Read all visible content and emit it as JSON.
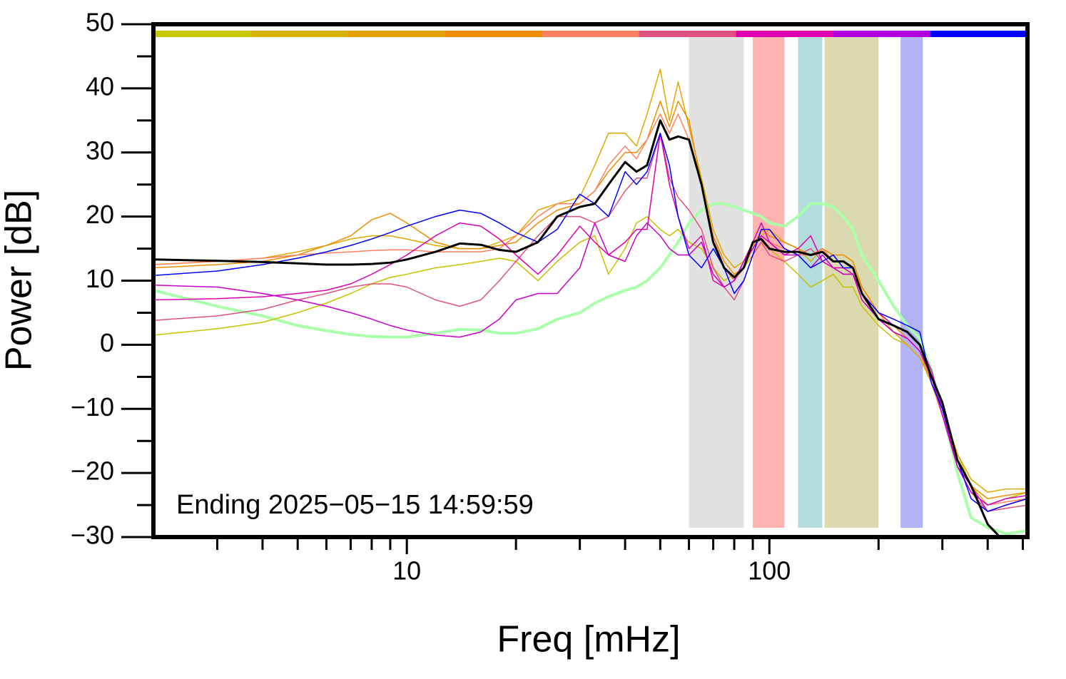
{
  "chart_data": {
    "type": "line",
    "xlabel": "Freq [mHz]",
    "ylabel": "Power [dB]",
    "annotation": "Ending 2025−05−15 14:59:59",
    "xscale": "log",
    "xlim": [
      2,
      515
    ],
    "xticks": [
      10,
      100
    ],
    "xminor_ticks": [
      3,
      4,
      5,
      6,
      7,
      8,
      9,
      20,
      30,
      40,
      50,
      60,
      70,
      80,
      90,
      200,
      300,
      400,
      500
    ],
    "ylim": [
      -30,
      50
    ],
    "yticks": [
      {
        "value": -30,
        "label": "−30"
      },
      {
        "value": -20,
        "label": "−20"
      },
      {
        "value": -10,
        "label": "−10"
      },
      0,
      10,
      20,
      30,
      40,
      50
    ],
    "yminor_ticks": [
      -25,
      -15,
      -5,
      5,
      15,
      25,
      35,
      45
    ],
    "colorbar": [
      "#c8c800",
      "#d9b300",
      "#e6a000",
      "#f08c00",
      "#ff8060",
      "#e05080",
      "#e000b0",
      "#b000e0",
      "#0000ff"
    ],
    "bands": [
      {
        "x": [
          60,
          85
        ],
        "color": "#e2e2e2"
      },
      {
        "x": [
          90,
          110
        ],
        "color": "#ffb3b0"
      },
      {
        "x": [
          120,
          140
        ],
        "color": "#b3dcdc"
      },
      {
        "x": [
          142,
          200
        ],
        "color": "#dbd9b0"
      },
      {
        "x": [
          230,
          265
        ],
        "color": "#b3b3f7"
      }
    ],
    "x": [
      2,
      3,
      4,
      5,
      6,
      7,
      8,
      9,
      10,
      12,
      14,
      16,
      18,
      20,
      23,
      26,
      30,
      33,
      36,
      40,
      43,
      46,
      50,
      53,
      56,
      60,
      65,
      70,
      75,
      80,
      85,
      90,
      95,
      100,
      110,
      120,
      130,
      140,
      150,
      160,
      170,
      180,
      200,
      220,
      240,
      260,
      280,
      300,
      330,
      360,
      400,
      450,
      515
    ],
    "series": [
      {
        "color": "#aaffaa",
        "width": 4,
        "values": [
          8.5,
          6,
          4.5,
          3,
          2.2,
          1.6,
          1.3,
          1.2,
          1.2,
          1.8,
          2.4,
          2.3,
          1.8,
          1.8,
          2.5,
          4,
          5,
          6.5,
          7.5,
          8.5,
          9,
          10,
          12,
          14,
          16,
          19,
          21,
          22,
          22,
          21.5,
          21,
          20.5,
          20,
          19,
          18.5,
          20,
          22,
          22,
          21.5,
          20,
          18,
          14,
          10,
          6,
          3,
          1,
          -4,
          -10,
          -20,
          -27,
          -28.5,
          -29.5,
          -29
        ]
      },
      {
        "color": "#c8c000",
        "width": 1.5,
        "values": [
          1.5,
          2.5,
          3.5,
          5,
          6.5,
          8,
          9.5,
          10.5,
          11,
          12,
          12.5,
          13,
          13.5,
          13,
          10,
          13,
          16,
          17,
          11,
          15,
          19,
          20,
          18,
          17,
          18,
          16,
          15,
          12,
          10,
          11,
          12,
          14,
          16,
          15,
          13,
          11,
          9,
          10,
          11,
          9,
          9,
          6,
          3,
          1,
          0,
          -2,
          -5,
          -10,
          -17,
          -22,
          -25,
          -24,
          -23
        ]
      },
      {
        "color": "#e0a800",
        "width": 1.5,
        "values": [
          12.5,
          13,
          13.5,
          14.5,
          15.5,
          16.5,
          17,
          17,
          16.5,
          15.5,
          15,
          15,
          16,
          17,
          21,
          22,
          23,
          28,
          33,
          33,
          31,
          36,
          43,
          35,
          41,
          34,
          26,
          18,
          14,
          12,
          13,
          16,
          17,
          18,
          16,
          15,
          13,
          15,
          13,
          13,
          12,
          9,
          5,
          2,
          0,
          -2,
          -6,
          -10,
          -17,
          -21,
          -23,
          -22.5,
          -22.5
        ]
      },
      {
        "color": "#f08c00",
        "width": 1.5,
        "values": [
          12,
          12.5,
          13,
          14,
          15.5,
          17,
          19.5,
          20.5,
          19,
          16,
          15,
          15,
          15.5,
          16,
          19,
          21,
          22,
          24,
          27,
          30,
          30,
          32,
          38,
          34,
          38,
          35,
          25,
          17,
          13,
          11,
          12,
          15,
          18,
          17,
          16,
          15,
          14,
          15,
          14,
          14,
          13,
          9,
          5,
          3,
          1,
          -1,
          -6,
          -11,
          -18,
          -22,
          -24,
          -23.5,
          -23
        ]
      },
      {
        "color": "#ff8060",
        "width": 1.5,
        "values": [
          12.5,
          13,
          13.5,
          14,
          14.3,
          14.5,
          14.7,
          14.8,
          14.8,
          14.5,
          14.5,
          14.5,
          15,
          17,
          20,
          22,
          22,
          24,
          28,
          31,
          29,
          32,
          36,
          33,
          36,
          32,
          25,
          17,
          12,
          10,
          12,
          15,
          17,
          16,
          15,
          14,
          14,
          15,
          13,
          13,
          12,
          8,
          4,
          2,
          1,
          -1,
          -6,
          -11,
          -19,
          -23,
          -25,
          -24.5,
          -24
        ]
      },
      {
        "color": "#e05080",
        "width": 1.5,
        "values": [
          3.8,
          4.5,
          5.5,
          7,
          8,
          9,
          9.5,
          9.5,
          9,
          7,
          6,
          7,
          10,
          13,
          17,
          20,
          20,
          19,
          20,
          24,
          26,
          26,
          33,
          26,
          23,
          21,
          18,
          12,
          9,
          7,
          10,
          14,
          16,
          14,
          13,
          14,
          15,
          13,
          12,
          11,
          11,
          7,
          4,
          2,
          1,
          -1,
          -5,
          -10,
          -19,
          -23,
          -26,
          -25.5,
          -25
        ]
      },
      {
        "color": "#e000b0",
        "width": 1.5,
        "values": [
          7,
          7.2,
          7.5,
          8,
          8.5,
          9.5,
          11,
          12.5,
          14,
          17,
          19,
          18.5,
          16.5,
          14,
          11,
          14,
          18.5,
          16,
          14,
          16,
          18,
          18,
          33,
          25,
          20,
          15,
          17,
          10,
          9,
          10,
          13,
          16,
          19,
          16,
          14,
          15,
          17,
          13,
          12,
          12,
          11,
          8,
          5,
          3,
          2,
          0,
          -4,
          -10,
          -19,
          -22,
          -26,
          -25,
          -24
        ]
      },
      {
        "color": "#c800c8",
        "width": 1.5,
        "values": [
          9.3,
          9,
          8,
          7,
          6,
          5,
          4,
          3,
          2.3,
          1.5,
          1.2,
          2,
          4,
          7,
          8,
          8,
          12,
          19,
          14,
          13,
          17,
          19,
          17,
          15,
          14,
          14,
          16,
          11,
          9,
          10,
          13,
          15,
          17,
          16,
          14,
          14,
          12,
          14,
          12,
          11,
          11,
          7,
          4,
          2,
          1,
          -1,
          -5,
          -11,
          -19,
          -23,
          -25,
          -24,
          -23.5
        ]
      },
      {
        "color": "#0000ff",
        "width": 1.5,
        "values": [
          10.8,
          11.5,
          12.5,
          13.5,
          14.5,
          15.5,
          16.5,
          17.5,
          18.5,
          20,
          21,
          20.5,
          19,
          17.5,
          16,
          18,
          23.5,
          22,
          20,
          27,
          25,
          27,
          33,
          28,
          20,
          14,
          12,
          15,
          12,
          8,
          10,
          14,
          18,
          18,
          15,
          14,
          12,
          13,
          14,
          12,
          12,
          8,
          5,
          4,
          3,
          2,
          -6,
          -10,
          -18,
          -24,
          -26,
          -25,
          -24
        ]
      },
      {
        "color": "#000000",
        "width": 3,
        "values": [
          13.3,
          13.1,
          12.9,
          12.7,
          12.5,
          12.5,
          12.6,
          12.8,
          13.3,
          14.5,
          15.8,
          15.6,
          14.8,
          14.5,
          16,
          20,
          21.5,
          22,
          25,
          28.5,
          27,
          28,
          35,
          32,
          32.5,
          32,
          25,
          16,
          12,
          10.5,
          12,
          16,
          16.5,
          15,
          14.5,
          14.5,
          14,
          14.5,
          13,
          13,
          12,
          8,
          4,
          3,
          2,
          0,
          -5,
          -9,
          -18,
          -22,
          -28,
          -31,
          -31
        ]
      }
    ]
  }
}
